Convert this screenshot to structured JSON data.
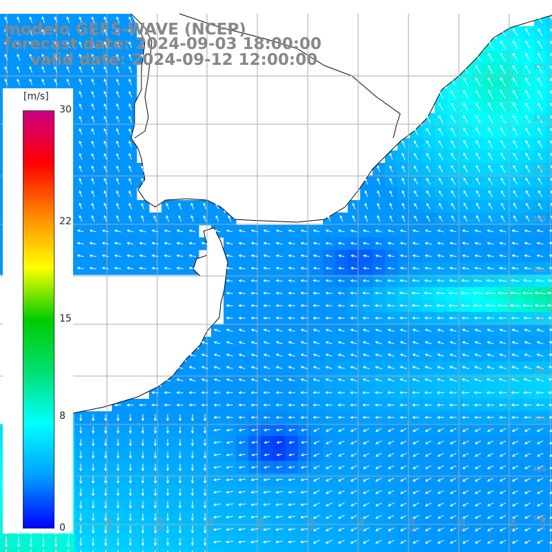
{
  "title": {
    "model": "modelo GEFS-WAVE (NCEP)",
    "forecast": "forecast date: 2024-09-03 18:00:00",
    "valid": "valid date: 2024-09-12 12:00:00"
  },
  "colorbar": {
    "unit": "[m/s]",
    "min": 0,
    "max": 30,
    "ticks": [
      {
        "value": 30,
        "label": "30"
      },
      {
        "value": 22,
        "label": "22"
      },
      {
        "value": 15,
        "label": "15"
      },
      {
        "value": 8,
        "label": "8"
      },
      {
        "value": 0,
        "label": "0"
      }
    ],
    "stops": [
      "#0000ff",
      "#00a0ff",
      "#00ffff",
      "#00e070",
      "#00cc00",
      "#ffff00",
      "#ff8800",
      "#ff0000",
      "#cc0088"
    ]
  },
  "map": {
    "region": "Rio de la Plata / Uruguay coast",
    "lon_range": [
      -64,
      -49
    ],
    "lat_range": [
      -41.5,
      -30.5
    ],
    "lat_labels": [
      "32S",
      "33S",
      "34S",
      "35S",
      "36S",
      "37S",
      "38S",
      "39S",
      "40S",
      "41S"
    ],
    "lon_labels": [
      "61W",
      "60W",
      "59W",
      "58W",
      "57W",
      "56W",
      "55W",
      "54W",
      "53W",
      "52W",
      "51W",
      "50W"
    ],
    "ocean_color": "#1a55ee",
    "land_color": "#ffffff",
    "arrow_color": "#ffffff",
    "coast_color": "#000000",
    "grid_color": "#aaaaaa"
  },
  "wind_field": {
    "description": "surface wind speed (m/s) over ocean, white arrows show direction",
    "strong_band": {
      "lat": -36.3,
      "speed": 10
    },
    "typical_speed": 4
  }
}
